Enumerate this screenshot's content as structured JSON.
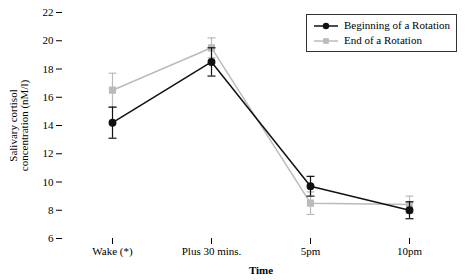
{
  "chart_data": {
    "type": "line",
    "categories": [
      "Wake (*)",
      "Plus 30 mins.",
      "5pm",
      "10pm"
    ],
    "series": [
      {
        "name": "Beginning of a Rotation",
        "color": "#111111",
        "marker": "circle",
        "values": [
          14.2,
          18.5,
          9.7,
          8.0
        ],
        "yerr": [
          1.1,
          1.0,
          0.7,
          0.6
        ]
      },
      {
        "name": "End of a Rotation",
        "color": "#bbbbbb",
        "marker": "square",
        "values": [
          16.5,
          19.5,
          8.5,
          8.4
        ],
        "yerr": [
          1.2,
          0.7,
          0.8,
          0.6
        ]
      }
    ],
    "xlabel": "Time",
    "ylabel": "Salivary cortisol\nconcentration (nM/l)",
    "ylim": [
      6,
      22
    ],
    "yticks": [
      6,
      8,
      10,
      12,
      14,
      16,
      18,
      20,
      22
    ],
    "grid": false,
    "legend": "upper right"
  }
}
